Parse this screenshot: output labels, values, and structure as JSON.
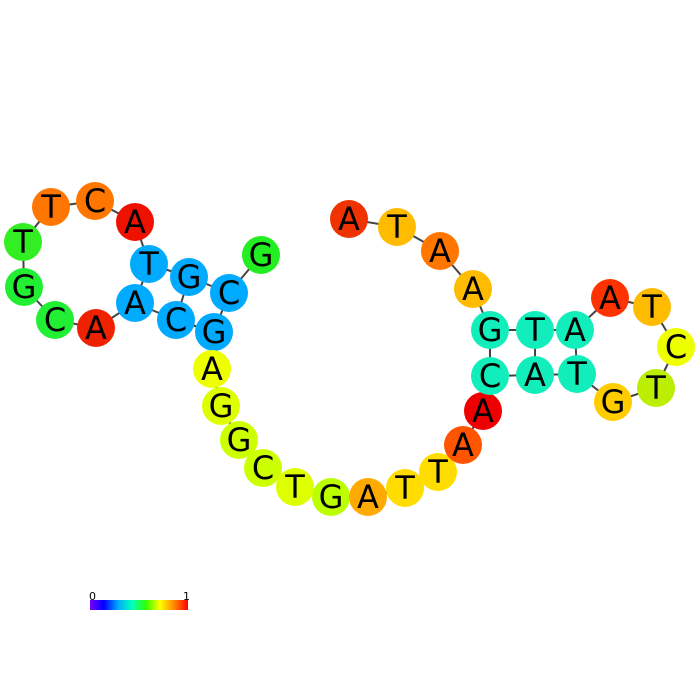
{
  "structure": {
    "nucleotides": [
      {
        "base": "G",
        "color": "#22ee22"
      },
      {
        "base": "C",
        "color": "#00aaff"
      },
      {
        "base": "G",
        "color": "#00aaff"
      },
      {
        "base": "T",
        "color": "#00aaff"
      },
      {
        "base": "A",
        "color": "#ee1100"
      },
      {
        "base": "C",
        "color": "#ff7700"
      },
      {
        "base": "T",
        "color": "#ff7700"
      },
      {
        "base": "T",
        "color": "#33ee22"
      },
      {
        "base": "G",
        "color": "#22ee33"
      },
      {
        "base": "C",
        "color": "#22ee33"
      },
      {
        "base": "A",
        "color": "#ee2200"
      },
      {
        "base": "A",
        "color": "#00aaff"
      },
      {
        "base": "C",
        "color": "#00aaff"
      },
      {
        "base": "G",
        "color": "#00aaff"
      },
      {
        "base": "A",
        "color": "#eeff00"
      },
      {
        "base": "G",
        "color": "#ddff00"
      },
      {
        "base": "G",
        "color": "#ccff00"
      },
      {
        "base": "C",
        "color": "#ccff00"
      },
      {
        "base": "T",
        "color": "#ddff00"
      },
      {
        "base": "G",
        "color": "#bbff00"
      },
      {
        "base": "A",
        "color": "#ffaa00"
      },
      {
        "base": "T",
        "color": "#ffdd00"
      },
      {
        "base": "T",
        "color": "#ffdd00"
      },
      {
        "base": "A",
        "color": "#ff5500"
      },
      {
        "base": "A",
        "color": "#ee0000"
      },
      {
        "base": "C",
        "color": "#11eebb"
      },
      {
        "base": "A",
        "color": "#11eebb"
      },
      {
        "base": "T",
        "color": "#11eebb"
      },
      {
        "base": "G",
        "color": "#ffcc00"
      },
      {
        "base": "T",
        "color": "#bbee00"
      },
      {
        "base": "C",
        "color": "#eeff00"
      },
      {
        "base": "T",
        "color": "#ffbb00"
      },
      {
        "base": "A",
        "color": "#ff3300"
      },
      {
        "base": "A",
        "color": "#11eebb"
      },
      {
        "base": "T",
        "color": "#11eebb"
      },
      {
        "base": "G",
        "color": "#11eebb"
      },
      {
        "base": "A",
        "color": "#ffbb00"
      },
      {
        "base": "A",
        "color": "#ff7700"
      },
      {
        "base": "T",
        "color": "#ffbb00"
      },
      {
        "base": "A",
        "color": "#ee3300"
      }
    ],
    "pairs": [
      [
        1,
        13
      ],
      [
        2,
        12
      ],
      [
        3,
        11
      ],
      [
        25,
        35
      ],
      [
        26,
        34
      ],
      [
        27,
        33
      ]
    ]
  },
  "color_scale": {
    "min_label": "0",
    "max_label": "1",
    "stops": [
      "#7700ff",
      "#0000ff",
      "#00aaff",
      "#00ffbb",
      "#33ff00",
      "#ffff00",
      "#ff8800",
      "#ff0000"
    ]
  }
}
